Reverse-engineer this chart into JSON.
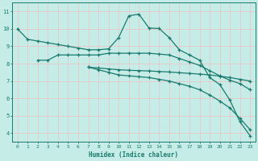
{
  "xlabel": "Humidex (Indice chaleur)",
  "xlim": [
    -0.5,
    23.5
  ],
  "ylim": [
    3.5,
    11.5
  ],
  "yticks": [
    4,
    5,
    6,
    7,
    8,
    9,
    10,
    11
  ],
  "xticks": [
    0,
    1,
    2,
    3,
    4,
    5,
    6,
    7,
    8,
    9,
    10,
    11,
    12,
    13,
    14,
    15,
    16,
    17,
    18,
    19,
    20,
    21,
    22,
    23
  ],
  "bg_color": "#c5ece6",
  "grid_color": "#e8c8c8",
  "line_color": "#1a7a6e",
  "line1_x": [
    0,
    1,
    2,
    3,
    4,
    5,
    6,
    7,
    8,
    9,
    10,
    11,
    12,
    13,
    14,
    15,
    16,
    17,
    18,
    19,
    20,
    21,
    22,
    23
  ],
  "line1_y": [
    10.0,
    9.4,
    9.3,
    9.2,
    9.1,
    9.0,
    8.9,
    8.8,
    8.8,
    8.85,
    9.5,
    10.75,
    10.85,
    10.05,
    10.02,
    9.5,
    8.8,
    8.5,
    8.2,
    7.2,
    6.8,
    5.9,
    4.65,
    3.85
  ],
  "line2_x": [
    2,
    3,
    4,
    5,
    6,
    7,
    8,
    9,
    10,
    11,
    12,
    13,
    14,
    15,
    16,
    17,
    18,
    19,
    20,
    21,
    22,
    23
  ],
  "line2_y": [
    8.2,
    8.2,
    8.5,
    8.5,
    8.5,
    8.5,
    8.5,
    8.6,
    8.6,
    8.6,
    8.6,
    8.6,
    8.55,
    8.5,
    8.3,
    8.1,
    7.9,
    7.6,
    7.3,
    7.05,
    6.85,
    6.5
  ],
  "line3_x": [
    7,
    8,
    9,
    10,
    11,
    12,
    13,
    14,
    15,
    16,
    17,
    18,
    19,
    20,
    21,
    22,
    23
  ],
  "line3_y": [
    7.8,
    7.75,
    7.7,
    7.65,
    7.62,
    7.6,
    7.58,
    7.55,
    7.52,
    7.48,
    7.44,
    7.4,
    7.35,
    7.28,
    7.2,
    7.1,
    7.0
  ],
  "line4_x": [
    7,
    8,
    9,
    10,
    11,
    12,
    13,
    14,
    15,
    16,
    17,
    18,
    19,
    20,
    21,
    22,
    23
  ],
  "line4_y": [
    7.8,
    7.65,
    7.5,
    7.35,
    7.3,
    7.25,
    7.2,
    7.1,
    7.0,
    6.85,
    6.7,
    6.5,
    6.2,
    5.85,
    5.45,
    4.85,
    4.2
  ],
  "marker": "+",
  "markersize": 3,
  "linewidth": 0.9
}
